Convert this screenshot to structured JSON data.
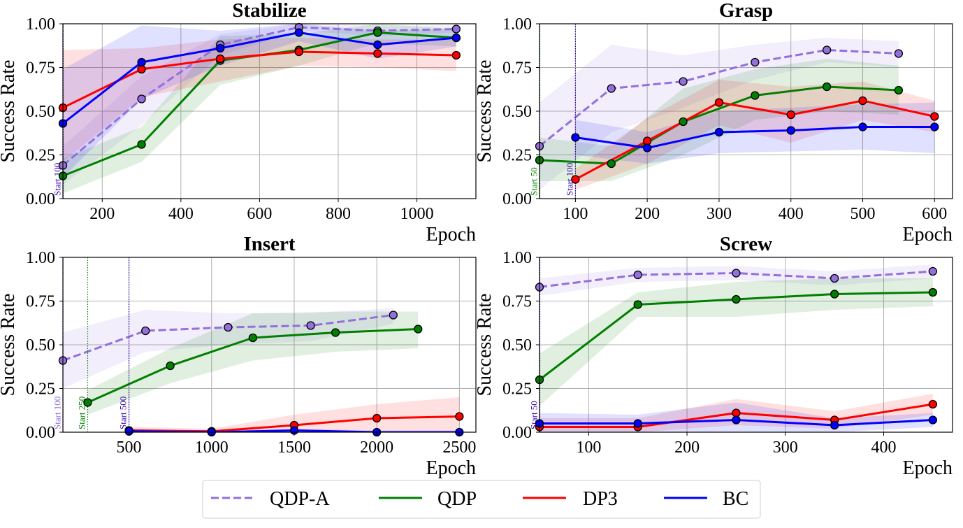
{
  "legend": [
    {
      "key": "qdpa",
      "label": "QDP-A",
      "color": "#9370db",
      "dashed": true
    },
    {
      "key": "qdp",
      "label": "QDP",
      "color": "#007f00",
      "dashed": false
    },
    {
      "key": "dp3",
      "label": "DP3",
      "color": "#ff0000",
      "dashed": false
    },
    {
      "key": "bc",
      "label": "BC",
      "color": "#0000ff",
      "dashed": false
    }
  ],
  "chart_data": [
    {
      "type": "line",
      "title": "Stabilize",
      "xlabel": "Epoch",
      "ylabel": "Success Rate",
      "xlim": [
        100,
        1150
      ],
      "ylim": [
        0,
        1
      ],
      "xticks": [
        200,
        400,
        600,
        800,
        1000
      ],
      "xtick_labels": [
        "200",
        "400",
        "600",
        "800",
        "1000"
      ],
      "yticks": [
        0,
        0.25,
        0.5,
        0.75,
        1.0
      ],
      "ytick_labels": [
        "0.00",
        "0.25",
        "0.50",
        "0.75",
        "1.00"
      ],
      "grid": true,
      "start_markers": [
        {
          "x": 100,
          "label": "Start 100",
          "color": "#3300aa"
        }
      ],
      "series": [
        {
          "key": "qdpa",
          "name": "QDP-A",
          "x": [
            100,
            300,
            500,
            700,
            900,
            1100
          ],
          "values": [
            0.19,
            0.57,
            0.88,
            0.98,
            0.96,
            0.97
          ],
          "lower": [
            0.08,
            0.42,
            0.82,
            0.96,
            0.93,
            0.95
          ],
          "upper": [
            0.3,
            0.7,
            0.94,
            1.0,
            0.99,
            0.99
          ]
        },
        {
          "key": "qdp",
          "name": "QDP",
          "x": [
            100,
            300,
            500,
            700,
            900,
            1100
          ],
          "values": [
            0.13,
            0.31,
            0.79,
            0.85,
            0.95,
            0.92
          ],
          "lower": [
            0.03,
            0.21,
            0.65,
            0.76,
            0.89,
            0.87
          ],
          "upper": [
            0.23,
            0.41,
            0.93,
            0.94,
            1.0,
            0.97
          ]
        },
        {
          "key": "dp3",
          "name": "DP3",
          "x": [
            100,
            300,
            500,
            700,
            900,
            1100
          ],
          "values": [
            0.52,
            0.74,
            0.8,
            0.84,
            0.83,
            0.82
          ],
          "lower": [
            0.21,
            0.58,
            0.67,
            0.76,
            0.75,
            0.73
          ],
          "upper": [
            0.85,
            0.86,
            0.91,
            0.92,
            0.91,
            0.91
          ]
        },
        {
          "key": "bc",
          "name": "BC",
          "x": [
            100,
            300,
            500,
            700,
            900,
            1100
          ],
          "values": [
            0.43,
            0.78,
            0.86,
            0.95,
            0.88,
            0.92
          ],
          "lower": [
            0.12,
            0.57,
            0.76,
            0.9,
            0.8,
            0.87
          ],
          "upper": [
            0.74,
            0.99,
            0.96,
            1.0,
            0.96,
            0.97
          ]
        }
      ]
    },
    {
      "type": "line",
      "title": "Grasp",
      "xlabel": "Epoch",
      "ylabel": "Success Rate",
      "xlim": [
        50,
        625
      ],
      "ylim": [
        0,
        1
      ],
      "xticks": [
        100,
        200,
        300,
        400,
        500,
        600
      ],
      "xtick_labels": [
        "100",
        "200",
        "300",
        "400",
        "500",
        "600"
      ],
      "yticks": [
        0,
        0.25,
        0.5,
        0.75,
        1.0
      ],
      "ytick_labels": [
        "0.00",
        "0.25",
        "0.50",
        "0.75",
        "1.00"
      ],
      "grid": true,
      "start_markers": [
        {
          "x": 50,
          "label": "Start 50",
          "color": "#007f00"
        },
        {
          "x": 100,
          "label": "Start 100",
          "color": "#3300aa"
        }
      ],
      "series": [
        {
          "key": "qdpa",
          "name": "QDP-A",
          "x": [
            50,
            150,
            250,
            350,
            450,
            550
          ],
          "values": [
            0.3,
            0.63,
            0.67,
            0.78,
            0.85,
            0.83
          ],
          "lower": [
            0.05,
            0.38,
            0.52,
            0.68,
            0.78,
            0.75
          ],
          "upper": [
            0.55,
            0.88,
            0.82,
            0.88,
            0.92,
            0.9
          ]
        },
        {
          "key": "qdp",
          "name": "QDP",
          "x": [
            50,
            150,
            250,
            350,
            450,
            550
          ],
          "values": [
            0.22,
            0.2,
            0.44,
            0.59,
            0.64,
            0.62
          ],
          "lower": [
            0.1,
            0.1,
            0.25,
            0.45,
            0.5,
            0.48
          ],
          "upper": [
            0.35,
            0.3,
            0.63,
            0.74,
            0.8,
            0.76
          ]
        },
        {
          "key": "dp3",
          "name": "DP3",
          "x": [
            100,
            200,
            300,
            400,
            500,
            600
          ],
          "values": [
            0.11,
            0.33,
            0.55,
            0.48,
            0.56,
            0.47
          ],
          "lower": [
            0.05,
            0.2,
            0.42,
            0.32,
            0.45,
            0.38
          ],
          "upper": [
            0.17,
            0.46,
            0.68,
            0.64,
            0.67,
            0.56
          ]
        },
        {
          "key": "bc",
          "name": "BC",
          "x": [
            100,
            200,
            300,
            400,
            500,
            600
          ],
          "values": [
            0.35,
            0.29,
            0.38,
            0.39,
            0.41,
            0.41
          ],
          "lower": [
            0.25,
            0.2,
            0.26,
            0.27,
            0.28,
            0.26
          ],
          "upper": [
            0.45,
            0.38,
            0.5,
            0.52,
            0.54,
            0.55
          ]
        }
      ]
    },
    {
      "type": "line",
      "title": "Insert",
      "xlabel": "Epoch",
      "ylabel": "Success Rate",
      "xlim": [
        100,
        2600
      ],
      "ylim": [
        0,
        1
      ],
      "xticks": [
        500,
        1000,
        1500,
        2000,
        2500
      ],
      "xtick_labels": [
        "500",
        "1000",
        "1500",
        "2000",
        "2500"
      ],
      "yticks": [
        0,
        0.25,
        0.5,
        0.75,
        1.0
      ],
      "ytick_labels": [
        "0.00",
        "0.25",
        "0.50",
        "0.75",
        "1.00"
      ],
      "grid": true,
      "start_markers": [
        {
          "x": 100,
          "label": "Start 100",
          "color": "#9370db"
        },
        {
          "x": 250,
          "label": "Start 250",
          "color": "#007f00"
        },
        {
          "x": 500,
          "label": "Start 500",
          "color": "#3300aa"
        }
      ],
      "series": [
        {
          "key": "qdpa",
          "name": "QDP-A",
          "x": [
            100,
            600,
            1100,
            1600,
            2100
          ],
          "values": [
            0.41,
            0.58,
            0.6,
            0.61,
            0.67
          ],
          "lower": [
            0.25,
            0.46,
            0.5,
            0.52,
            0.62
          ],
          "upper": [
            0.57,
            0.7,
            0.68,
            0.68,
            0.71
          ]
        },
        {
          "key": "qdp",
          "name": "QDP",
          "x": [
            250,
            750,
            1250,
            1750,
            2250
          ],
          "values": [
            0.17,
            0.38,
            0.54,
            0.57,
            0.59
          ],
          "lower": [
            0.1,
            0.28,
            0.41,
            0.46,
            0.48
          ],
          "upper": [
            0.24,
            0.48,
            0.68,
            0.69,
            0.69
          ]
        },
        {
          "key": "dp3",
          "name": "DP3",
          "x": [
            500,
            1000,
            1500,
            2000,
            2500
          ],
          "values": [
            0.01,
            0.005,
            0.04,
            0.08,
            0.09
          ],
          "lower": [
            0.0,
            0.0,
            0.0,
            0.0,
            0.0
          ],
          "upper": [
            0.03,
            0.02,
            0.1,
            0.16,
            0.2
          ]
        },
        {
          "key": "bc",
          "name": "BC",
          "x": [
            500,
            1000,
            1500,
            2000,
            2500
          ],
          "values": [
            0.005,
            0.0,
            0.01,
            0.0,
            0.0
          ],
          "lower": [
            0.0,
            0.0,
            0.0,
            0.0,
            0.0
          ],
          "upper": [
            0.02,
            0.01,
            0.02,
            0.01,
            0.01
          ]
        }
      ]
    },
    {
      "type": "line",
      "title": "Screw",
      "xlabel": "Epoch",
      "ylabel": "Success Rate",
      "xlim": [
        50,
        470
      ],
      "ylim": [
        0,
        1
      ],
      "xticks": [
        100,
        200,
        300,
        400
      ],
      "xtick_labels": [
        "100",
        "200",
        "300",
        "400"
      ],
      "yticks": [
        0,
        0.25,
        0.5,
        0.75,
        1.0
      ],
      "ytick_labels": [
        "0.00",
        "0.25",
        "0.50",
        "0.75",
        "1.00"
      ],
      "grid": true,
      "start_markers": [
        {
          "x": 50,
          "label": "Start 50",
          "color": "#3300aa"
        }
      ],
      "series": [
        {
          "key": "qdpa",
          "name": "QDP-A",
          "x": [
            50,
            150,
            250,
            350,
            450
          ],
          "values": [
            0.83,
            0.9,
            0.91,
            0.88,
            0.92
          ],
          "lower": [
            0.78,
            0.86,
            0.87,
            0.84,
            0.88
          ],
          "upper": [
            0.88,
            0.94,
            0.95,
            0.92,
            0.96
          ]
        },
        {
          "key": "qdp",
          "name": "QDP",
          "x": [
            50,
            150,
            250,
            350,
            450
          ],
          "values": [
            0.3,
            0.73,
            0.76,
            0.79,
            0.8
          ],
          "lower": [
            0.15,
            0.66,
            0.66,
            0.7,
            0.72
          ],
          "upper": [
            0.45,
            0.8,
            0.86,
            0.88,
            0.88
          ]
        },
        {
          "key": "dp3",
          "name": "DP3",
          "x": [
            50,
            150,
            250,
            350,
            450
          ],
          "values": [
            0.03,
            0.03,
            0.11,
            0.07,
            0.16
          ],
          "lower": [
            0.0,
            0.0,
            0.04,
            0.02,
            0.1
          ],
          "upper": [
            0.08,
            0.08,
            0.19,
            0.12,
            0.22
          ]
        },
        {
          "key": "bc",
          "name": "BC",
          "x": [
            50,
            150,
            250,
            350,
            450
          ],
          "values": [
            0.05,
            0.05,
            0.07,
            0.04,
            0.07
          ],
          "lower": [
            0.0,
            0.0,
            0.0,
            0.0,
            0.03
          ],
          "upper": [
            0.11,
            0.1,
            0.17,
            0.08,
            0.11
          ]
        }
      ]
    }
  ]
}
